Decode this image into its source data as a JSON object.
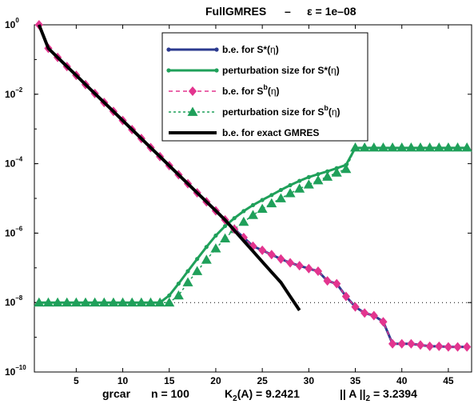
{
  "chart_data": {
    "type": "line",
    "title": "FullGMRES   –   ε = 1e–08",
    "title_parts": {
      "name": "FullGMRES",
      "sep": "–",
      "eps": "ε = 1e–08"
    },
    "xlim": [
      0.5,
      47.5
    ],
    "ylim": [
      1e-10,
      1
    ],
    "yscale": "log",
    "grid": false,
    "x_ticks": [
      5,
      10,
      15,
      20,
      25,
      30,
      35,
      40,
      45
    ],
    "y_ticks": [
      {
        "value": 1,
        "base": "10",
        "exp": "0"
      },
      {
        "value": 0.01,
        "base": "10",
        "exp": "–2"
      },
      {
        "value": 0.0001,
        "base": "10",
        "exp": "–4"
      },
      {
        "value": 1e-06,
        "base": "10",
        "exp": "–6"
      },
      {
        "value": 1e-08,
        "base": "10",
        "exp": "–8"
      },
      {
        "value": 1e-10,
        "base": "10",
        "exp": "–10"
      }
    ],
    "x_caption": {
      "matrix": "grcar",
      "n": "n = 100",
      "kappa_pre": "K",
      "kappa_sub": "2",
      "kappa_post": "(A) = 9.2421",
      "norm_pre": "|| A ||",
      "norm_sub": "2",
      "norm_post": " = 3.2394"
    },
    "legend_position": "top-center",
    "threshold_line": {
      "y": 1e-08,
      "style": "dotted"
    },
    "series": [
      {
        "key": "be_star",
        "legend_pre": "b.e. for S*(",
        "legend_post": ")",
        "color": "#2b3a8f",
        "marker": "dot",
        "x": [
          1,
          2,
          3,
          4,
          5,
          6,
          7,
          8,
          9,
          10,
          11,
          12,
          13,
          14,
          15,
          16,
          17,
          18,
          19,
          20,
          21,
          22,
          23,
          24,
          25,
          26,
          27,
          28,
          29,
          30,
          31,
          32,
          33,
          34,
          35,
          36,
          37,
          38,
          39,
          40,
          41,
          42,
          43,
          44,
          45,
          46,
          47
        ],
        "y": [
          1,
          0.21,
          0.115,
          0.063,
          0.035,
          0.019,
          0.0105,
          0.0058,
          0.0032,
          0.00175,
          0.00096,
          0.00053,
          0.00029,
          0.00016,
          8.8e-05,
          4.8e-05,
          2.65e-05,
          1.45e-05,
          8e-06,
          4.4e-06,
          2.4e-06,
          1.3e-06,
          7.5e-07,
          4.2e-07,
          3.2e-07,
          2.4e-07,
          1.8e-07,
          1.4e-07,
          1.15e-07,
          9.5e-08,
          8e-08,
          4.2e-08,
          3.5e-08,
          1.5e-08,
          7.5e-09,
          5e-09,
          4.2e-09,
          2.8e-09,
          6.5e-10,
          6.5e-10,
          6.5e-10,
          6e-10,
          5.5e-10,
          5.5e-10,
          5.3e-10,
          5.3e-10,
          5.3e-10
        ]
      },
      {
        "key": "ps_star",
        "legend_pre": "perturbation size for S*(",
        "legend_post": ")",
        "color": "#1fa05a",
        "marker": "dot",
        "x": [
          1,
          2,
          3,
          4,
          5,
          6,
          7,
          8,
          9,
          10,
          11,
          12,
          13,
          14,
          15,
          16,
          17,
          18,
          19,
          20,
          21,
          22,
          23,
          24,
          25,
          26,
          27,
          28,
          29,
          30,
          31,
          32,
          33,
          34,
          35,
          36,
          37,
          38,
          39,
          40,
          41,
          42,
          43,
          44,
          45,
          46,
          47
        ],
        "y": [
          1e-08,
          1e-08,
          1e-08,
          1e-08,
          1e-08,
          1e-08,
          1e-08,
          1e-08,
          1e-08,
          1e-08,
          1e-08,
          1e-08,
          1e-08,
          1e-08,
          1.6e-08,
          3.5e-08,
          8e-08,
          1.8e-07,
          4e-07,
          8.5e-07,
          1.6e-06,
          2.7e-06,
          4.3e-06,
          6.4e-06,
          9e-06,
          1.25e-05,
          1.75e-05,
          2.4e-05,
          3.2e-05,
          4.1e-05,
          5e-05,
          6e-05,
          7.4e-05,
          9.2e-05,
          0.000285,
          0.000285,
          0.000285,
          0.000285,
          0.000285,
          0.000285,
          0.000285,
          0.000285,
          0.000285,
          0.000285,
          0.000285,
          0.000285,
          0.000285
        ]
      },
      {
        "key": "be_b",
        "legend_pre": "b.e. for S",
        "legend_sup": "b",
        "legend_post": "(",
        "legend_end": ")",
        "color": "#e3358f",
        "marker": "diamond",
        "x": [
          1,
          2,
          3,
          4,
          5,
          6,
          7,
          8,
          9,
          10,
          11,
          12,
          13,
          14,
          15,
          16,
          17,
          18,
          19,
          20,
          21,
          22,
          23,
          24,
          25,
          26,
          27,
          28,
          29,
          30,
          31,
          32,
          33,
          34,
          35,
          36,
          37,
          38,
          39,
          40,
          41,
          42,
          43,
          44,
          45,
          46,
          47
        ],
        "y": [
          1,
          0.21,
          0.115,
          0.063,
          0.035,
          0.019,
          0.0105,
          0.0058,
          0.0032,
          0.00175,
          0.00096,
          0.00053,
          0.00029,
          0.00016,
          8.8e-05,
          4.8e-05,
          2.65e-05,
          1.45e-05,
          8e-06,
          4.4e-06,
          2.4e-06,
          1.3e-06,
          7.5e-07,
          4.2e-07,
          3.2e-07,
          2.4e-07,
          1.8e-07,
          1.4e-07,
          1.15e-07,
          9.5e-08,
          8e-08,
          4.2e-08,
          3.5e-08,
          1.5e-08,
          7.5e-09,
          5e-09,
          4.2e-09,
          2.8e-09,
          6.5e-10,
          6.5e-10,
          6.5e-10,
          6e-10,
          5.5e-10,
          5.5e-10,
          5.3e-10,
          5.3e-10,
          5.3e-10
        ]
      },
      {
        "key": "ps_b",
        "legend_pre": "perturbation size for S",
        "legend_sup": "b",
        "legend_post": "(",
        "legend_end": ")",
        "color": "#1fa05a",
        "marker": "triangle",
        "x": [
          1,
          2,
          3,
          4,
          5,
          6,
          7,
          8,
          9,
          10,
          11,
          12,
          13,
          14,
          15,
          16,
          17,
          18,
          19,
          20,
          21,
          22,
          23,
          24,
          25,
          26,
          27,
          28,
          29,
          30,
          31,
          32,
          33,
          34,
          35,
          36,
          37,
          38,
          39,
          40,
          41,
          42,
          43,
          44,
          45,
          46,
          47
        ],
        "y": [
          1e-08,
          1e-08,
          1e-08,
          1e-08,
          1e-08,
          1e-08,
          1e-08,
          1e-08,
          1e-08,
          1e-08,
          1e-08,
          1e-08,
          1e-08,
          1e-08,
          1e-08,
          1.6e-08,
          3.8e-08,
          8e-08,
          1.7e-07,
          3.6e-07,
          7e-07,
          1.3e-06,
          2.1e-06,
          3.3e-06,
          5e-06,
          7.2e-06,
          1e-05,
          1.4e-05,
          1.9e-05,
          2.5e-05,
          3.3e-05,
          4.2e-05,
          5.5e-05,
          7e-05,
          0.00029,
          0.00029,
          0.00029,
          0.00029,
          0.00029,
          0.00029,
          0.00029,
          0.00029,
          0.00029,
          0.00029,
          0.00029,
          0.00029,
          0.00029
        ]
      },
      {
        "key": "be_exact",
        "legend_pre": "b.e. for exact GMRES",
        "color": "#000000",
        "marker": "none",
        "x": [
          1,
          2,
          3,
          4,
          5,
          6,
          7,
          8,
          9,
          10,
          11,
          12,
          13,
          14,
          15,
          16,
          17,
          18,
          19,
          20,
          21,
          22,
          23,
          24,
          25,
          26,
          27,
          28,
          29
        ],
        "y": [
          1,
          0.21,
          0.115,
          0.063,
          0.035,
          0.019,
          0.0105,
          0.0058,
          0.0032,
          0.00175,
          0.00096,
          0.00053,
          0.00029,
          0.00016,
          8.8e-05,
          4.8e-05,
          2.65e-05,
          1.45e-05,
          8e-06,
          4.4e-06,
          2.4e-06,
          1.2e-06,
          6e-07,
          3e-07,
          1.5e-07,
          7.5e-08,
          3.8e-08,
          1.5e-08,
          6e-09
        ]
      }
    ],
    "legend_symbol": "η"
  }
}
